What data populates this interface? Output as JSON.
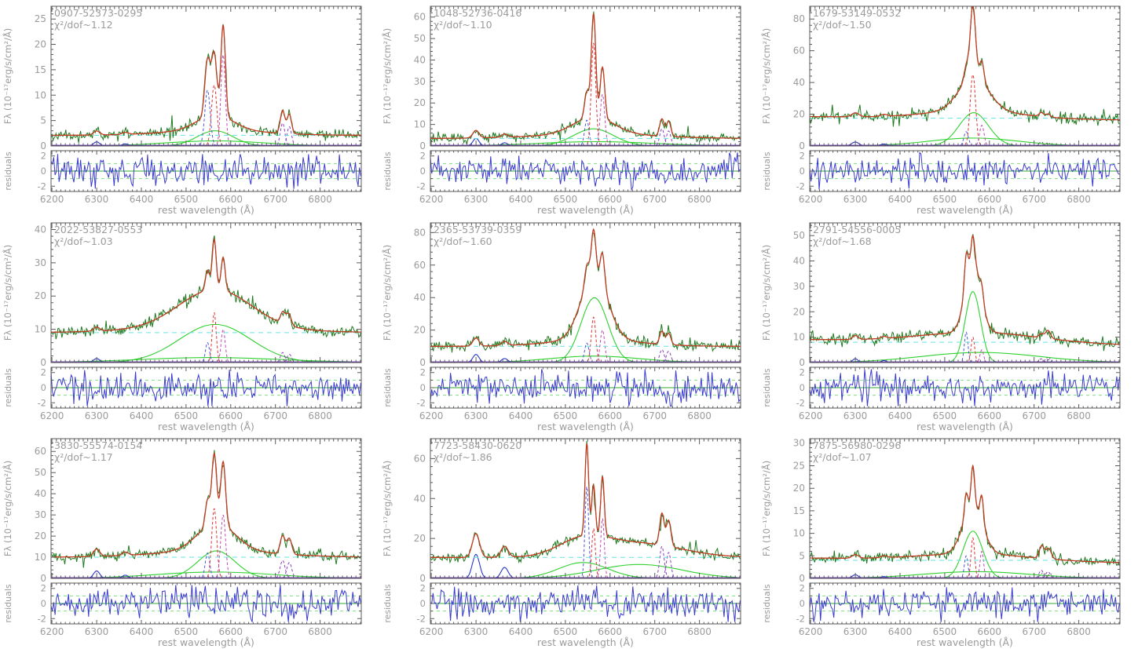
{
  "figure": {
    "xlabel": "rest wavelength (Å)",
    "ylabel": "Fλ (10⁻¹⁷erg/s/cm²/Å)",
    "residuals_label": "residuals",
    "x_range": [
      6198,
      6892
    ],
    "x_ticks": [
      6200,
      6300,
      6400,
      6500,
      6600,
      6700,
      6800
    ],
    "x_minor_step": 10,
    "residual_range": [
      -2.7,
      2.7
    ],
    "residual_ticks": [
      -2,
      0,
      2
    ],
    "residual_guides": [
      -1,
      1
    ],
    "colors": {
      "spectrum": "#1e7a1e",
      "fit": "#c23b22",
      "broad": "#2fd12f",
      "oi": "#2736c9",
      "narrow_blue": "#5056d6",
      "narrow_red": "#e03434",
      "narrow_magenta": "#c04ab4",
      "narrow_violet": "#8d3fbf",
      "narrow_black": "#555555",
      "continuum": "#63e3e3",
      "baseline": "#5a23aa",
      "residual": "#3a3ad0",
      "residual_zero": "#2fae2f",
      "residual_guide": "#79e079",
      "frame": "#5a5a5a",
      "text": "#9b9b9b"
    }
  },
  "chart_data": {
    "type": "line",
    "description": "3x3 grid of SDSS optical spectra around H-alpha with multi-Gaussian emission-line fits and normalized residual panels",
    "panels": [
      {
        "title": "0907-52373-0295",
        "chi2": "χ²/dof~1.12",
        "ylim": [
          0,
          27.5
        ],
        "yticks": [
          0,
          5,
          10,
          15,
          20,
          25
        ],
        "y_minor_step": 1,
        "continuum": 2.1,
        "slope": 0,
        "noise": 0.45,
        "seed": 11,
        "components": [
          {
            "kind": "broad",
            "center": 6565,
            "sigma": 40,
            "amp": 3.0
          },
          {
            "kind": "broad",
            "center": 6565,
            "sigma": 110,
            "amp": 1.0
          },
          {
            "kind": "oi",
            "center": 6300,
            "sigma": 7,
            "amp": 0.8
          },
          {
            "kind": "oi",
            "center": 6364,
            "sigma": 7,
            "amp": 0.4
          },
          {
            "kind": "narrow_blue",
            "center": 6548,
            "sigma": 6,
            "amp": 11
          },
          {
            "kind": "narrow_red",
            "center": 6563,
            "sigma": 6,
            "amp": 12
          },
          {
            "kind": "narrow_magenta",
            "center": 6583,
            "sigma": 5,
            "amp": 18
          },
          {
            "kind": "narrow_violet",
            "center": 6716,
            "sigma": 5,
            "amp": 4.5
          },
          {
            "kind": "narrow_violet",
            "center": 6731,
            "sigma": 5,
            "amp": 3.8
          }
        ]
      },
      {
        "title": "1048-52736-0416",
        "chi2": "χ²/dof~1.10",
        "ylim": [
          0,
          65
        ],
        "yticks": [
          0,
          10,
          20,
          30,
          40,
          50,
          60
        ],
        "y_minor_step": 2,
        "continuum": 3.5,
        "slope": 0,
        "noise": 1.0,
        "seed": 22,
        "components": [
          {
            "kind": "broad",
            "center": 6563,
            "sigma": 45,
            "amp": 8
          },
          {
            "kind": "broad",
            "center": 6570,
            "sigma": 130,
            "amp": 2
          },
          {
            "kind": "oi",
            "center": 6300,
            "sigma": 7,
            "amp": 3.5
          },
          {
            "kind": "oi",
            "center": 6364,
            "sigma": 7,
            "amp": 1.5
          },
          {
            "kind": "narrow_blue",
            "center": 6548,
            "sigma": 5,
            "amp": 12
          },
          {
            "kind": "narrow_red",
            "center": 6563,
            "sigma": 5,
            "amp": 48
          },
          {
            "kind": "narrow_magenta",
            "center": 6583,
            "sigma": 5,
            "amp": 24
          },
          {
            "kind": "narrow_violet",
            "center": 6716,
            "sigma": 5,
            "amp": 8
          },
          {
            "kind": "narrow_violet",
            "center": 6731,
            "sigma": 5,
            "amp": 7
          }
        ]
      },
      {
        "title": "1679-53149-0532",
        "chi2": "χ²/dof~1.50",
        "ylim": [
          0,
          88
        ],
        "yticks": [
          0,
          20,
          40,
          60,
          80
        ],
        "y_minor_step": 4,
        "continuum": 17.5,
        "slope": -0.3,
        "noise": 1.6,
        "seed": 33,
        "components": [
          {
            "kind": "broad",
            "center": 6565,
            "sigma": 33,
            "amp": 21
          },
          {
            "kind": "broad",
            "center": 6565,
            "sigma": 100,
            "amp": 5
          },
          {
            "kind": "oi",
            "center": 6300,
            "sigma": 8,
            "amp": 2.5
          },
          {
            "kind": "oi",
            "center": 6364,
            "sigma": 8,
            "amp": 1.2
          },
          {
            "kind": "narrow_blue",
            "center": 6548,
            "sigma": 5,
            "amp": 9
          },
          {
            "kind": "narrow_red",
            "center": 6563,
            "sigma": 6,
            "amp": 45
          },
          {
            "kind": "narrow_magenta",
            "center": 6583,
            "sigma": 5,
            "amp": 13
          },
          {
            "kind": "narrow_black",
            "center": 6716,
            "sigma": 5,
            "amp": 2.5
          },
          {
            "kind": "narrow_black",
            "center": 6731,
            "sigma": 5,
            "amp": 2
          }
        ]
      },
      {
        "title": "2022-53827-0553",
        "chi2": "χ²/dof~1.03",
        "ylim": [
          0,
          42
        ],
        "yticks": [
          0,
          10,
          20,
          30,
          40
        ],
        "y_minor_step": 2,
        "continuum": 9,
        "slope": 0,
        "noise": 0.8,
        "seed": 44,
        "components": [
          {
            "kind": "broad",
            "center": 6565,
            "sigma": 80,
            "amp": 11.5
          },
          {
            "kind": "broad",
            "center": 6555,
            "sigma": 160,
            "amp": 1.5
          },
          {
            "kind": "oi",
            "center": 6300,
            "sigma": 7,
            "amp": 1.2
          },
          {
            "kind": "narrow_blue",
            "center": 6548,
            "sigma": 4.5,
            "amp": 6
          },
          {
            "kind": "narrow_red",
            "center": 6563,
            "sigma": 4.5,
            "amp": 15
          },
          {
            "kind": "narrow_magenta",
            "center": 6583,
            "sigma": 4.5,
            "amp": 10
          },
          {
            "kind": "narrow_violet",
            "center": 6716,
            "sigma": 5,
            "amp": 3
          },
          {
            "kind": "narrow_violet",
            "center": 6731,
            "sigma": 5,
            "amp": 2.5
          },
          {
            "kind": "narrow_black",
            "center": 6725,
            "sigma": 6,
            "amp": 1.5
          }
        ]
      },
      {
        "title": "2365-53739-0359",
        "chi2": "χ²/dof~1.60",
        "ylim": [
          0,
          86
        ],
        "yticks": [
          0,
          20,
          40,
          60,
          80
        ],
        "y_minor_step": 4,
        "continuum": 10,
        "slope": 0,
        "noise": 1.6,
        "seed": 55,
        "components": [
          {
            "kind": "broad",
            "center": 6565,
            "sigma": 30,
            "amp": 40
          },
          {
            "kind": "broad",
            "center": 6565,
            "sigma": 100,
            "amp": 4
          },
          {
            "kind": "oi",
            "center": 6300,
            "sigma": 7,
            "amp": 5
          },
          {
            "kind": "oi",
            "center": 6364,
            "sigma": 7,
            "amp": 2.5
          },
          {
            "kind": "narrow_blue",
            "center": 6548,
            "sigma": 5,
            "amp": 12
          },
          {
            "kind": "narrow_red",
            "center": 6563,
            "sigma": 5,
            "amp": 28
          },
          {
            "kind": "narrow_magenta",
            "center": 6583,
            "sigma": 5,
            "amp": 20
          },
          {
            "kind": "narrow_violet",
            "center": 6716,
            "sigma": 5,
            "amp": 8
          },
          {
            "kind": "narrow_violet",
            "center": 6731,
            "sigma": 5,
            "amp": 7
          }
        ]
      },
      {
        "title": "2791-54556-0005",
        "chi2": "χ²/dof~1.68",
        "ylim": [
          0,
          55
        ],
        "yticks": [
          0,
          10,
          20,
          30,
          40,
          50
        ],
        "y_minor_step": 2,
        "continuum": 8,
        "slope": -0.3,
        "noise": 1.0,
        "seed": 66,
        "components": [
          {
            "kind": "broad",
            "center": 6563,
            "sigma": 17,
            "amp": 28
          },
          {
            "kind": "broad",
            "center": 6580,
            "sigma": 130,
            "amp": 4
          },
          {
            "kind": "oi",
            "center": 6300,
            "sigma": 6,
            "amp": 1.5
          },
          {
            "kind": "oi",
            "center": 6364,
            "sigma": 6,
            "amp": 0.8
          },
          {
            "kind": "narrow_blue",
            "center": 6548,
            "sigma": 4,
            "amp": 12
          },
          {
            "kind": "narrow_red",
            "center": 6563,
            "sigma": 4,
            "amp": 10
          },
          {
            "kind": "narrow_magenta",
            "center": 6583,
            "sigma": 4,
            "amp": 5
          },
          {
            "kind": "narrow_violet",
            "center": 6716,
            "sigma": 5,
            "amp": 1.5
          },
          {
            "kind": "narrow_violet",
            "center": 6731,
            "sigma": 5,
            "amp": 1.2
          },
          {
            "kind": "narrow_black",
            "center": 6731,
            "sigma": 6,
            "amp": 2
          }
        ]
      },
      {
        "title": "3830-55574-0154",
        "chi2": "χ²/dof~1.17",
        "ylim": [
          0,
          66
        ],
        "yticks": [
          0,
          10,
          20,
          30,
          40,
          50,
          60
        ],
        "y_minor_step": 2,
        "continuum": 10,
        "slope": 0,
        "noise": 1.1,
        "seed": 77,
        "components": [
          {
            "kind": "broad",
            "center": 6568,
            "sigma": 42,
            "amp": 13
          },
          {
            "kind": "broad",
            "center": 6565,
            "sigma": 130,
            "amp": 3
          },
          {
            "kind": "oi",
            "center": 6300,
            "sigma": 7,
            "amp": 3.5
          },
          {
            "kind": "oi",
            "center": 6364,
            "sigma": 7,
            "amp": 1.5
          },
          {
            "kind": "narrow_blue",
            "center": 6548,
            "sigma": 5,
            "amp": 12
          },
          {
            "kind": "narrow_red",
            "center": 6563,
            "sigma": 5.5,
            "amp": 33
          },
          {
            "kind": "narrow_magenta",
            "center": 6583,
            "sigma": 5.5,
            "amp": 30
          },
          {
            "kind": "narrow_violet",
            "center": 6716,
            "sigma": 5.5,
            "amp": 8.5
          },
          {
            "kind": "narrow_violet",
            "center": 6731,
            "sigma": 5.5,
            "amp": 7.5
          }
        ]
      },
      {
        "title": "7723-58430-0620",
        "chi2": "χ²/dof~1.86",
        "ylim": [
          0,
          70
        ],
        "yticks": [
          0,
          20,
          40,
          60
        ],
        "y_minor_step": 4,
        "continuum": 10.5,
        "slope": 0,
        "noise": 1.2,
        "seed": 88,
        "components": [
          {
            "kind": "broad",
            "center": 6540,
            "sigma": 55,
            "amp": 8
          },
          {
            "kind": "broad",
            "center": 6665,
            "sigma": 95,
            "amp": 7
          },
          {
            "kind": "oi",
            "center": 6300,
            "sigma": 8,
            "amp": 12
          },
          {
            "kind": "oi",
            "center": 6364,
            "sigma": 8,
            "amp": 5.5
          },
          {
            "kind": "narrow_blue",
            "center": 6548,
            "sigma": 4,
            "amp": 46
          },
          {
            "kind": "narrow_red",
            "center": 6563,
            "sigma": 4,
            "amp": 25
          },
          {
            "kind": "narrow_magenta",
            "center": 6583,
            "sigma": 4,
            "amp": 30
          },
          {
            "kind": "narrow_violet",
            "center": 6716,
            "sigma": 5,
            "amp": 16
          },
          {
            "kind": "narrow_violet",
            "center": 6731,
            "sigma": 5,
            "amp": 13
          }
        ]
      },
      {
        "title": "7875-56980-0296",
        "chi2": "χ²/dof~1.07",
        "ylim": [
          0,
          31
        ],
        "yticks": [
          0,
          5,
          10,
          15,
          20,
          25,
          30
        ],
        "y_minor_step": 1,
        "continuum": 4,
        "slope": -0.15,
        "noise": 0.55,
        "seed": 99,
        "components": [
          {
            "kind": "broad",
            "center": 6563,
            "sigma": 22,
            "amp": 10.5
          },
          {
            "kind": "broad",
            "center": 6570,
            "sigma": 120,
            "amp": 1.5
          },
          {
            "kind": "oi",
            "center": 6300,
            "sigma": 7,
            "amp": 0.8
          },
          {
            "kind": "oi",
            "center": 6364,
            "sigma": 7,
            "amp": 0.4
          },
          {
            "kind": "narrow_blue",
            "center": 6548,
            "sigma": 4,
            "amp": 5
          },
          {
            "kind": "narrow_red",
            "center": 6563,
            "sigma": 4,
            "amp": 9
          },
          {
            "kind": "narrow_magenta",
            "center": 6583,
            "sigma": 4,
            "amp": 6
          },
          {
            "kind": "narrow_violet",
            "center": 6716,
            "sigma": 5,
            "amp": 1.8
          },
          {
            "kind": "narrow_violet",
            "center": 6731,
            "sigma": 5,
            "amp": 1.5
          },
          {
            "kind": "narrow_black",
            "center": 6720,
            "sigma": 6,
            "amp": 1.2
          },
          {
            "kind": "narrow_black",
            "center": 6736,
            "sigma": 5,
            "amp": 1.0
          }
        ]
      }
    ]
  }
}
